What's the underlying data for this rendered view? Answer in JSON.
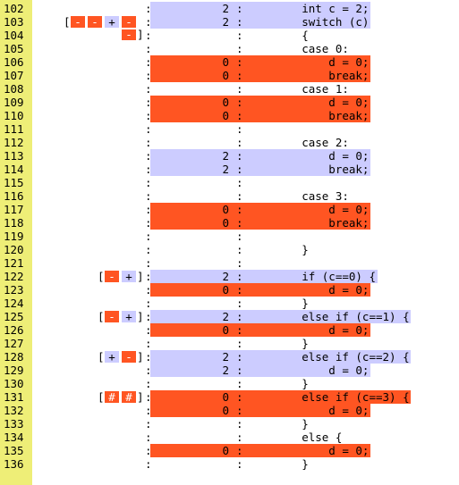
{
  "colors": {
    "gutter": "#eeee77",
    "covered": "#ccccff",
    "uncovered": "#ff5522"
  },
  "lines": [
    {
      "n": "102",
      "count": "2",
      "code": "        int c = 2;",
      "state": "cov"
    },
    {
      "n": "103",
      "count": "2",
      "code": "        switch (c)",
      "state": "cov",
      "branches": [
        "-",
        "-",
        "+",
        "-"
      ],
      "branch_colors": [
        "f",
        "f",
        "t",
        "f"
      ],
      "branch_more": [
        "-"
      ]
    },
    {
      "n": "104",
      "count": "",
      "code": "        {",
      "state": "none"
    },
    {
      "n": "105",
      "count": "",
      "code": "        case 0:",
      "state": "none"
    },
    {
      "n": "106",
      "count": "0",
      "code": "            d = 0;",
      "state": "unc"
    },
    {
      "n": "107",
      "count": "0",
      "code": "            break;",
      "state": "unc"
    },
    {
      "n": "108",
      "count": "",
      "code": "        case 1:",
      "state": "none"
    },
    {
      "n": "109",
      "count": "0",
      "code": "            d = 0;",
      "state": "unc"
    },
    {
      "n": "110",
      "count": "0",
      "code": "            break;",
      "state": "unc"
    },
    {
      "n": "111",
      "count": "",
      "code": "",
      "state": "none"
    },
    {
      "n": "112",
      "count": "",
      "code": "        case 2:",
      "state": "none"
    },
    {
      "n": "113",
      "count": "2",
      "code": "            d = 0;",
      "state": "cov"
    },
    {
      "n": "114",
      "count": "2",
      "code": "            break;",
      "state": "cov"
    },
    {
      "n": "115",
      "count": "",
      "code": "",
      "state": "none"
    },
    {
      "n": "116",
      "count": "",
      "code": "        case 3:",
      "state": "none"
    },
    {
      "n": "117",
      "count": "0",
      "code": "            d = 0;",
      "state": "unc"
    },
    {
      "n": "118",
      "count": "0",
      "code": "            break;",
      "state": "unc"
    },
    {
      "n": "119",
      "count": "",
      "code": "",
      "state": "none"
    },
    {
      "n": "120",
      "count": "",
      "code": "        }",
      "state": "none"
    },
    {
      "n": "121",
      "count": "",
      "code": "",
      "state": "none"
    },
    {
      "n": "122",
      "count": "2",
      "code": "        if (c==0) {",
      "state": "cov",
      "branches": [
        "-",
        "+"
      ],
      "branch_colors": [
        "f",
        "t"
      ]
    },
    {
      "n": "123",
      "count": "0",
      "code": "            d = 0;",
      "state": "unc"
    },
    {
      "n": "124",
      "count": "",
      "code": "        }",
      "state": "none"
    },
    {
      "n": "125",
      "count": "2",
      "code": "        else if (c==1) {",
      "state": "cov",
      "branches": [
        "-",
        "+"
      ],
      "branch_colors": [
        "f",
        "t"
      ]
    },
    {
      "n": "126",
      "count": "0",
      "code": "            d = 0;",
      "state": "unc"
    },
    {
      "n": "127",
      "count": "",
      "code": "        }",
      "state": "none"
    },
    {
      "n": "128",
      "count": "2",
      "code": "        else if (c==2) {",
      "state": "cov",
      "branches": [
        "+",
        "-"
      ],
      "branch_colors": [
        "t",
        "f"
      ]
    },
    {
      "n": "129",
      "count": "2",
      "code": "            d = 0;",
      "state": "cov"
    },
    {
      "n": "130",
      "count": "",
      "code": "        }",
      "state": "none"
    },
    {
      "n": "131",
      "count": "0",
      "code": "        else if (c==3) {",
      "state": "unc",
      "branches": [
        "#",
        "#"
      ],
      "branch_colors": [
        "f",
        "f"
      ]
    },
    {
      "n": "132",
      "count": "0",
      "code": "            d = 0;",
      "state": "unc"
    },
    {
      "n": "133",
      "count": "",
      "code": "        }",
      "state": "none"
    },
    {
      "n": "134",
      "count": "",
      "code": "        else {",
      "state": "none"
    },
    {
      "n": "135",
      "count": "0",
      "code": "            d = 0;",
      "state": "unc"
    },
    {
      "n": "136",
      "count": "",
      "code": "        }",
      "state": "none"
    }
  ]
}
